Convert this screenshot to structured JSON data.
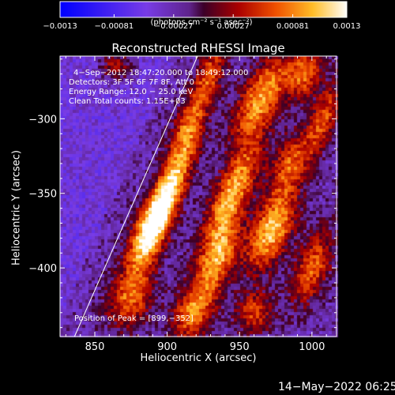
{
  "chart_data": {
    "type": "heatmap",
    "title": "Reconstructed RHESSI Image",
    "xlabel": "Heliocentric X (arcsec)",
    "ylabel": "Heliocentric Y (arcsec)",
    "xlim": [
      826,
      1017
    ],
    "ylim": [
      -446,
      -258
    ],
    "x_ticks": [
      850,
      900,
      950,
      1000
    ],
    "y_ticks": [
      -300,
      -350,
      -400
    ],
    "x_tick_labels": [
      "850",
      "900",
      "950",
      "1000"
    ],
    "y_tick_labels": [
      "−300",
      "−350",
      "−400"
    ],
    "colorbar": {
      "range": [
        -0.0013,
        0.0013
      ],
      "tick_values": [
        -0.0013,
        -0.00081,
        -0.00027,
        0.00027,
        0.00081,
        0.0013
      ],
      "tick_labels": [
        "−0.0013",
        "−0.00081",
        "−0.00027",
        "0.00027",
        "0.00081",
        "0.0013"
      ],
      "units_label": "(photons cm⁻² s⁻¹ asec⁻²)"
    },
    "info_lines": [
      "4−Sep−2012 18:47:20.000 to 18:49:12.000",
      "Detectors: 3F 5F 6F 7F 8F, Att 0",
      "Energy Range: 12.0 − 25.0 keV",
      "Clean    Total counts: 1.15E+03"
    ],
    "peak_label": "Position of Peak = [899,−352]",
    "peak": [
      899,
      -352
    ],
    "limb_line": [
      [
        836,
        -446
      ],
      [
        921,
        -258
      ]
    ],
    "sources": [
      {
        "x": 899,
        "y": -352,
        "sx": 7,
        "sy": 24,
        "amp": 1.0,
        "angle": 25
      },
      {
        "x": 887,
        "y": -380,
        "sx": 8,
        "sy": 18,
        "amp": 0.7,
        "angle": 25
      },
      {
        "x": 875,
        "y": -420,
        "sx": 10,
        "sy": 15,
        "amp": 0.6,
        "angle": 25
      },
      {
        "x": 915,
        "y": -305,
        "sx": 7,
        "sy": 18,
        "amp": 0.6,
        "angle": 20
      },
      {
        "x": 930,
        "y": -270,
        "sx": 6,
        "sy": 14,
        "amp": 0.55,
        "angle": 20
      },
      {
        "x": 945,
        "y": -350,
        "sx": 8,
        "sy": 28,
        "amp": 0.8,
        "angle": 25
      },
      {
        "x": 935,
        "y": -395,
        "sx": 8,
        "sy": 18,
        "amp": 0.7,
        "angle": 25
      },
      {
        "x": 918,
        "y": -430,
        "sx": 9,
        "sy": 14,
        "amp": 0.65,
        "angle": 25
      },
      {
        "x": 965,
        "y": -285,
        "sx": 9,
        "sy": 22,
        "amp": 0.75,
        "angle": 30
      },
      {
        "x": 972,
        "y": -375,
        "sx": 9,
        "sy": 20,
        "amp": 0.85,
        "angle": 25
      },
      {
        "x": 985,
        "y": -330,
        "sx": 8,
        "sy": 16,
        "amp": 0.55,
        "angle": 25
      },
      {
        "x": 995,
        "y": -270,
        "sx": 8,
        "sy": 12,
        "amp": 0.6,
        "angle": 20
      },
      {
        "x": 1000,
        "y": -400,
        "sx": 8,
        "sy": 18,
        "amp": 0.6,
        "angle": 20
      },
      {
        "x": 960,
        "y": -430,
        "sx": 9,
        "sy": 10,
        "amp": 0.5,
        "angle": 20
      },
      {
        "x": 1008,
        "y": -300,
        "sx": 6,
        "sy": 18,
        "amp": 0.55,
        "angle": 20
      },
      {
        "x": 865,
        "y": -265,
        "sx": 8,
        "sy": 7,
        "amp": 0.5,
        "angle": 0
      }
    ],
    "grid": false
  },
  "timestamp": "14−May−2022 06:25"
}
